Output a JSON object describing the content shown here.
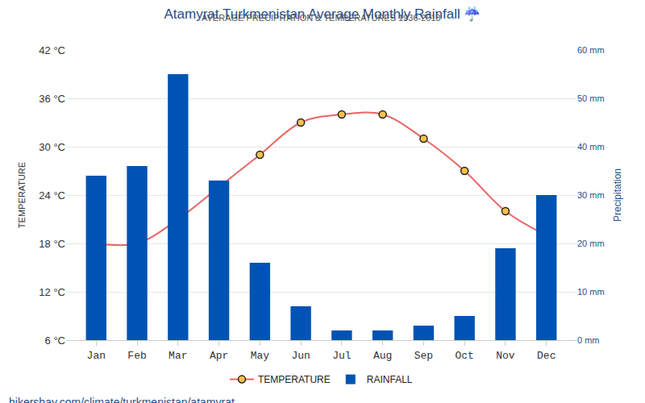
{
  "chart_data": {
    "type": "bar",
    "title": "Atamyrat Turkmenistan Average Monthly Rainfall ☔",
    "subtitle": "AVERAGE PRECIPITATION & TEMPERATURES 1936-2018",
    "source": "hikersbay.com/climate/turkmenistan/atamyrat",
    "y_label": "TEMPERATURE",
    "y2_label": "Precipitation",
    "categories": [
      "Jan",
      "Feb",
      "Mar",
      "Apr",
      "May",
      "Jun",
      "Jul",
      "Aug",
      "Sep",
      "Oct",
      "Nov",
      "Dec"
    ],
    "series": [
      {
        "name": "RAINFALL",
        "type": "bar",
        "axis": "y2",
        "color": "#0053b4",
        "values": [
          34,
          36,
          55,
          33,
          16,
          7,
          2,
          2,
          3,
          5,
          19,
          30
        ]
      },
      {
        "name": "TEMPERATURE",
        "type": "line",
        "axis": "y",
        "color": "#eb6464",
        "marker": "circle",
        "line_style": "spline",
        "values": [
          18,
          18,
          21,
          25,
          29,
          33,
          34,
          34,
          31,
          27,
          22,
          19
        ]
      }
    ],
    "ylim": [
      6,
      42
    ],
    "yticks": [
      {
        "value": 6,
        "label": "6 °C"
      },
      {
        "value": 12,
        "label": "12 °C"
      },
      {
        "value": 18,
        "label": "18 °C"
      },
      {
        "value": 24,
        "label": "24 °C"
      },
      {
        "value": 30,
        "label": "30 °C"
      },
      {
        "value": 36,
        "label": "36 °C"
      },
      {
        "value": 42,
        "label": "42 °C"
      }
    ],
    "y2lim": [
      0,
      60
    ],
    "y2ticks": [
      {
        "value": 0,
        "label": "0 mm"
      },
      {
        "value": 10,
        "label": "10 mm"
      },
      {
        "value": 20,
        "label": "20 mm"
      },
      {
        "value": 30,
        "label": "30 mm"
      },
      {
        "value": 40,
        "label": "40 mm"
      },
      {
        "value": 50,
        "label": "50 mm"
      },
      {
        "value": 60,
        "label": "60 mm"
      }
    ],
    "grid": true,
    "legend": "bottom"
  }
}
